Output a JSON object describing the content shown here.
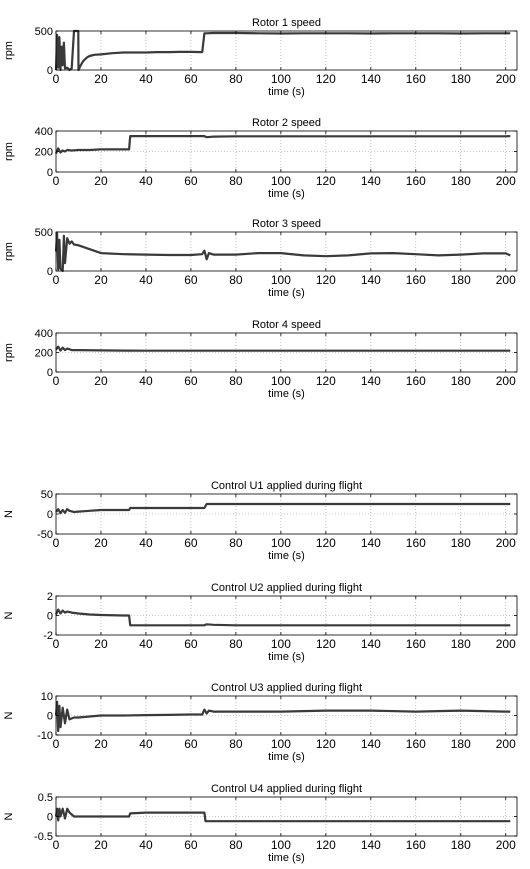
{
  "chart_data": [
    {
      "type": "line",
      "title": "Rotor 1 speed",
      "xlabel": "time (s)",
      "ylabel": "rpm",
      "xlim": [
        0,
        205
      ],
      "ylim": [
        0,
        500
      ],
      "xticks": [
        0,
        20,
        40,
        60,
        80,
        100,
        120,
        140,
        160,
        180,
        200
      ],
      "yticks": [
        0,
        500
      ],
      "grid": true,
      "x": [
        0,
        0.5,
        1,
        1.5,
        2,
        2.5,
        3,
        3.5,
        4,
        5,
        6,
        7,
        8,
        9,
        9.9,
        10,
        11,
        12,
        13,
        14,
        15,
        17,
        20,
        25,
        30,
        35,
        40,
        45,
        50,
        55,
        60,
        65,
        66,
        67,
        70,
        80,
        90,
        100,
        110,
        120,
        130,
        140,
        150,
        160,
        170,
        180,
        190,
        200,
        202
      ],
      "series": [
        {
          "values": [
            0,
            450,
            30,
            420,
            0,
            300,
            60,
            350,
            20,
            30,
            0,
            20,
            500,
            500,
            500,
            0,
            60,
            110,
            140,
            165,
            180,
            195,
            200,
            215,
            225,
            225,
            225,
            230,
            230,
            232,
            232,
            230,
            470,
            470,
            475,
            475,
            470,
            468,
            470,
            470,
            470,
            468,
            470,
            470,
            470,
            468,
            470,
            470,
            470
          ]
        }
      ]
    },
    {
      "type": "line",
      "title": "Rotor 2 speed",
      "xlabel": "time (s)",
      "ylabel": "rpm",
      "xlim": [
        0,
        205
      ],
      "ylim": [
        0,
        400
      ],
      "xticks": [
        0,
        20,
        40,
        60,
        80,
        100,
        120,
        140,
        160,
        180,
        200
      ],
      "yticks": [
        0,
        200,
        400
      ],
      "grid": true,
      "x": [
        0,
        1,
        2,
        3,
        4,
        5,
        7,
        10,
        15,
        20,
        25,
        30,
        32.5,
        33,
        40,
        50,
        60,
        66,
        67,
        70,
        80,
        90,
        100,
        110,
        120,
        130,
        140,
        150,
        160,
        170,
        180,
        190,
        200,
        202
      ],
      "series": [
        {
          "values": [
            180,
            230,
            190,
            210,
            200,
            215,
            210,
            215,
            215,
            220,
            220,
            220,
            220,
            350,
            350,
            350,
            350,
            350,
            340,
            345,
            348,
            348,
            348,
            348,
            348,
            348,
            348,
            348,
            348,
            348,
            348,
            348,
            348,
            350
          ]
        }
      ]
    },
    {
      "type": "line",
      "title": "Rotor 3 speed",
      "xlabel": "time (s)",
      "ylabel": "rpm",
      "xlim": [
        0,
        205
      ],
      "ylim": [
        0,
        500
      ],
      "xticks": [
        0,
        20,
        40,
        60,
        80,
        100,
        120,
        140,
        160,
        180,
        200
      ],
      "yticks": [
        0,
        500
      ],
      "grid": true,
      "x": [
        0,
        0.5,
        1,
        1.5,
        2,
        3,
        3.5,
        4,
        5,
        6,
        7,
        8,
        10,
        15,
        20,
        30,
        40,
        50,
        60,
        65,
        66,
        67,
        68,
        70,
        80,
        90,
        100,
        110,
        120,
        130,
        140,
        150,
        160,
        170,
        180,
        190,
        200,
        202
      ],
      "series": [
        {
          "values": [
            250,
            480,
            20,
            400,
            30,
            0,
            450,
            100,
            420,
            350,
            380,
            340,
            330,
            280,
            230,
            215,
            210,
            205,
            205,
            215,
            260,
            150,
            230,
            210,
            210,
            230,
            230,
            200,
            190,
            200,
            225,
            230,
            215,
            200,
            210,
            225,
            225,
            200
          ]
        }
      ]
    },
    {
      "type": "line",
      "title": "Rotor 4 speed",
      "xlabel": "time (s)",
      "ylabel": "rpm",
      "xlim": [
        0,
        205
      ],
      "ylim": [
        0,
        400
      ],
      "xticks": [
        0,
        20,
        40,
        60,
        80,
        100,
        120,
        140,
        160,
        180,
        200
      ],
      "yticks": [
        0,
        200,
        400
      ],
      "grid": true,
      "x": [
        0,
        1,
        2,
        3,
        4,
        5,
        7,
        10,
        20,
        30,
        40,
        50,
        60,
        70,
        80,
        100,
        120,
        140,
        160,
        180,
        200,
        202
      ],
      "series": [
        {
          "values": [
            230,
            260,
            220,
            250,
            225,
            240,
            225,
            225,
            222,
            220,
            218,
            218,
            218,
            218,
            218,
            218,
            218,
            218,
            218,
            218,
            218,
            218
          ]
        }
      ]
    },
    {
      "type": "line",
      "title": "Control U1 applied during flight",
      "xlabel": "time (s)",
      "ylabel": "N",
      "xlim": [
        0,
        205
      ],
      "ylim": [
        -50,
        50
      ],
      "xticks": [
        0,
        20,
        40,
        60,
        80,
        100,
        120,
        140,
        160,
        180,
        200
      ],
      "yticks": [
        -50,
        0,
        50
      ],
      "grid": true,
      "x": [
        0,
        1,
        2,
        3,
        4,
        5,
        6,
        8,
        10,
        15,
        20,
        30,
        32.5,
        33,
        40,
        50,
        60,
        66,
        67,
        80,
        100,
        120,
        140,
        160,
        180,
        200,
        202
      ],
      "series": [
        {
          "values": [
            5,
            12,
            2,
            10,
            3,
            12,
            8,
            5,
            6,
            8,
            10,
            10,
            10,
            15,
            15,
            15,
            15,
            15,
            25,
            25,
            25,
            25,
            25,
            25,
            25,
            25,
            25
          ]
        }
      ]
    },
    {
      "type": "line",
      "title": "Control U2 applied during flight",
      "xlabel": "time (s)",
      "ylabel": "N",
      "xlim": [
        0,
        205
      ],
      "ylim": [
        -2,
        2
      ],
      "xticks": [
        0,
        20,
        40,
        60,
        80,
        100,
        120,
        140,
        160,
        180,
        200
      ],
      "yticks": [
        -2,
        0,
        2
      ],
      "grid": true,
      "x": [
        0,
        1,
        2,
        3,
        4,
        5,
        7,
        10,
        15,
        20,
        30,
        32.5,
        33,
        40,
        50,
        60,
        66,
        67,
        70,
        80,
        100,
        120,
        140,
        160,
        180,
        200,
        202
      ],
      "series": [
        {
          "values": [
            0.1,
            0.6,
            0.2,
            0.5,
            0.3,
            0.4,
            0.3,
            0.2,
            0.1,
            0.05,
            0,
            0,
            -1,
            -1,
            -1,
            -1,
            -1,
            -0.9,
            -0.95,
            -1,
            -1,
            -1,
            -1,
            -1,
            -1,
            -1,
            -1
          ]
        }
      ]
    },
    {
      "type": "line",
      "title": "Control U3 applied during flight",
      "xlabel": "time (s)",
      "ylabel": "N",
      "xlim": [
        0,
        205
      ],
      "ylim": [
        -10,
        10
      ],
      "xticks": [
        0,
        20,
        40,
        60,
        80,
        100,
        120,
        140,
        160,
        180,
        200
      ],
      "yticks": [
        -10,
        0,
        10
      ],
      "grid": true,
      "x": [
        0,
        0.5,
        1,
        1.5,
        2,
        3,
        4,
        5,
        6,
        8,
        10,
        15,
        20,
        30,
        40,
        50,
        60,
        65,
        66,
        67,
        68,
        70,
        80,
        100,
        120,
        140,
        160,
        180,
        200,
        202
      ],
      "series": [
        {
          "values": [
            0,
            7,
            -8,
            5,
            -6,
            4,
            -4,
            3,
            -2,
            -1,
            -1,
            -0.5,
            0,
            0,
            0.2,
            0.3,
            0.5,
            0.5,
            3,
            1,
            2.5,
            2,
            2,
            2,
            2.5,
            2.5,
            2,
            2.5,
            2,
            2
          ]
        }
      ]
    },
    {
      "type": "line",
      "title": "Control U4 applied during flight",
      "xlabel": "time (s)",
      "ylabel": "N",
      "xlim": [
        0,
        205
      ],
      "ylim": [
        -0.5,
        0.5
      ],
      "xticks": [
        0,
        20,
        40,
        60,
        80,
        100,
        120,
        140,
        160,
        180,
        200
      ],
      "yticks": [
        -0.5,
        0,
        0.5
      ],
      "grid": true,
      "x": [
        0,
        0.5,
        1,
        1.5,
        2,
        3,
        4,
        5,
        6,
        7,
        8,
        10,
        15,
        20,
        30,
        32.5,
        33,
        40,
        50,
        60,
        66,
        66.5,
        80,
        100,
        120,
        140,
        160,
        180,
        200,
        202
      ],
      "series": [
        {
          "values": [
            0,
            0.2,
            -0.1,
            0.2,
            0,
            0.2,
            -0.05,
            0.2,
            0.1,
            0.05,
            0,
            0,
            0,
            0,
            0,
            0,
            0.08,
            0.1,
            0.1,
            0.1,
            0.1,
            -0.12,
            -0.12,
            -0.12,
            -0.12,
            -0.12,
            -0.12,
            -0.12,
            -0.12,
            -0.12
          ]
        }
      ]
    }
  ]
}
